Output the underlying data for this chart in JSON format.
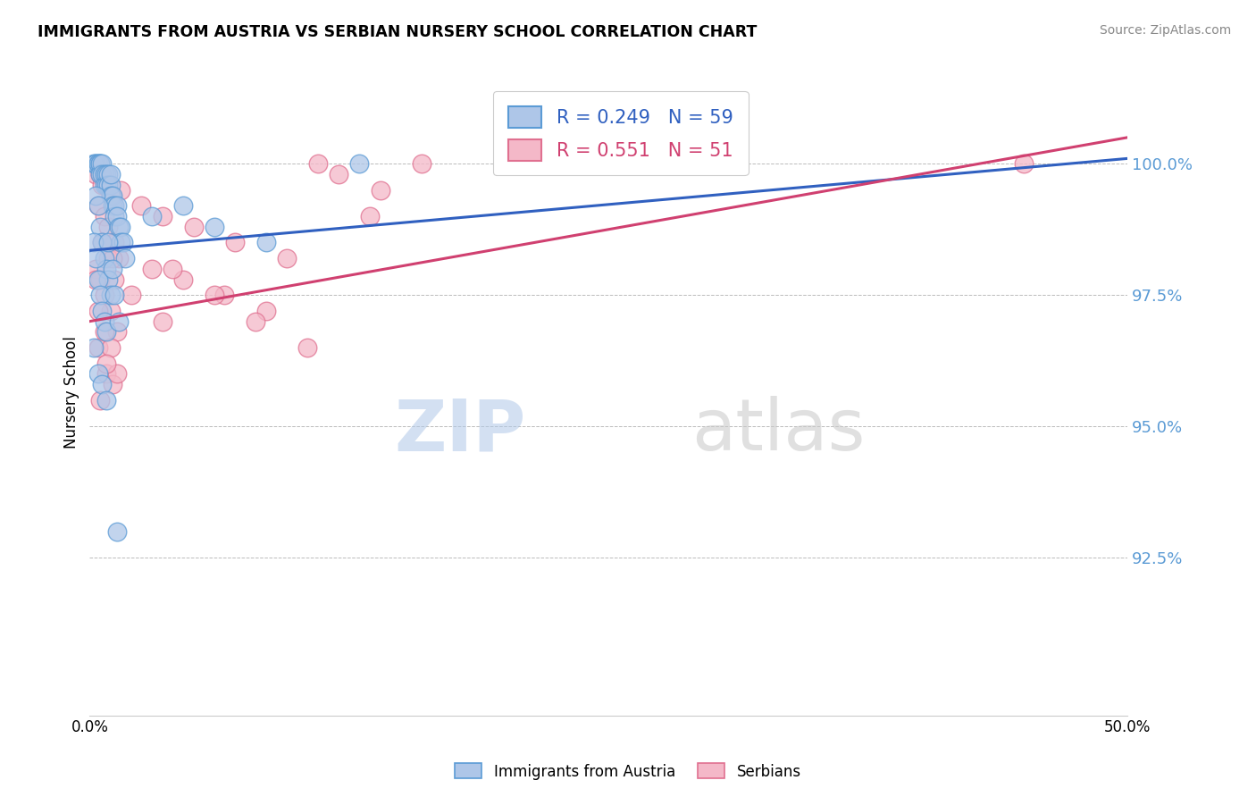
{
  "title": "IMMIGRANTS FROM AUSTRIA VS SERBIAN NURSERY SCHOOL CORRELATION CHART",
  "source": "Source: ZipAtlas.com",
  "ylabel": "Nursery School",
  "yticks": [
    92.5,
    95.0,
    97.5,
    100.0
  ],
  "ytick_labels": [
    "92.5%",
    "95.0%",
    "97.5%",
    "100.0%"
  ],
  "xmin": 0.0,
  "xmax": 50.0,
  "ymin": 89.5,
  "ymax": 101.8,
  "blue_color": "#aec6e8",
  "pink_color": "#f4b8c8",
  "blue_edge": "#5b9bd5",
  "pink_edge": "#e07090",
  "trend_blue": "#3060c0",
  "trend_pink": "#d04070",
  "legend_R1": "R = 0.249",
  "legend_N1": "N = 59",
  "legend_R2": "R = 0.551",
  "legend_N2": "N = 51",
  "watermark_zip": "ZIP",
  "watermark_atlas": "atlas",
  "blue_scatter_x": [
    0.2,
    0.3,
    0.3,
    0.4,
    0.4,
    0.5,
    0.5,
    0.5,
    0.6,
    0.6,
    0.7,
    0.7,
    0.8,
    0.8,
    0.9,
    0.9,
    1.0,
    1.0,
    1.0,
    1.1,
    1.1,
    1.2,
    1.2,
    1.3,
    1.3,
    1.4,
    1.5,
    1.5,
    1.6,
    1.7,
    0.3,
    0.4,
    0.5,
    0.6,
    0.7,
    0.8,
    0.9,
    1.0,
    0.2,
    0.3,
    0.4,
    0.5,
    0.6,
    0.7,
    0.8,
    1.1,
    1.2,
    1.4,
    0.9,
    3.0,
    4.5,
    6.0,
    8.5,
    13.0,
    0.2,
    0.4,
    0.6,
    0.8,
    1.3
  ],
  "blue_scatter_y": [
    100.0,
    100.0,
    100.0,
    100.0,
    100.0,
    100.0,
    100.0,
    99.8,
    100.0,
    99.8,
    99.8,
    99.6,
    99.8,
    99.6,
    99.8,
    99.6,
    99.6,
    99.4,
    99.8,
    99.4,
    99.2,
    99.2,
    99.0,
    99.2,
    99.0,
    98.8,
    98.8,
    98.5,
    98.5,
    98.2,
    99.4,
    99.2,
    98.8,
    98.5,
    98.2,
    98.0,
    97.8,
    97.5,
    98.5,
    98.2,
    97.8,
    97.5,
    97.2,
    97.0,
    96.8,
    98.0,
    97.5,
    97.0,
    98.5,
    99.0,
    99.2,
    98.8,
    98.5,
    100.0,
    96.5,
    96.0,
    95.8,
    95.5,
    93.0
  ],
  "pink_scatter_x": [
    0.3,
    0.5,
    0.6,
    0.8,
    1.0,
    0.4,
    0.7,
    0.9,
    1.2,
    1.4,
    0.3,
    0.5,
    0.7,
    1.0,
    1.3,
    0.4,
    0.8,
    1.1,
    1.5,
    2.5,
    3.5,
    5.0,
    7.0,
    9.5,
    12.0,
    3.0,
    4.5,
    6.5,
    8.5,
    11.0,
    14.0,
    0.6,
    0.9,
    1.2,
    0.4,
    0.7,
    1.0,
    1.3,
    4.0,
    6.0,
    8.0,
    10.5,
    13.5,
    0.5,
    1.1,
    2.0,
    16.0,
    45.0,
    3.5,
    0.3,
    0.8
  ],
  "pink_scatter_y": [
    99.8,
    99.8,
    99.6,
    99.6,
    99.4,
    99.2,
    99.0,
    98.8,
    98.5,
    98.2,
    98.0,
    97.8,
    97.5,
    97.2,
    96.8,
    96.5,
    96.0,
    95.8,
    99.5,
    99.2,
    99.0,
    98.8,
    98.5,
    98.2,
    99.8,
    98.0,
    97.8,
    97.5,
    97.2,
    100.0,
    99.5,
    98.5,
    98.2,
    97.8,
    97.2,
    96.8,
    96.5,
    96.0,
    98.0,
    97.5,
    97.0,
    96.5,
    99.0,
    95.5,
    98.2,
    97.5,
    100.0,
    100.0,
    97.0,
    97.8,
    96.2
  ],
  "trend_blue_x0": 0.0,
  "trend_blue_y0": 98.35,
  "trend_blue_x1": 50.0,
  "trend_blue_y1": 100.1,
  "trend_pink_x0": 0.0,
  "trend_pink_y0": 97.0,
  "trend_pink_x1": 50.0,
  "trend_pink_y1": 100.5
}
